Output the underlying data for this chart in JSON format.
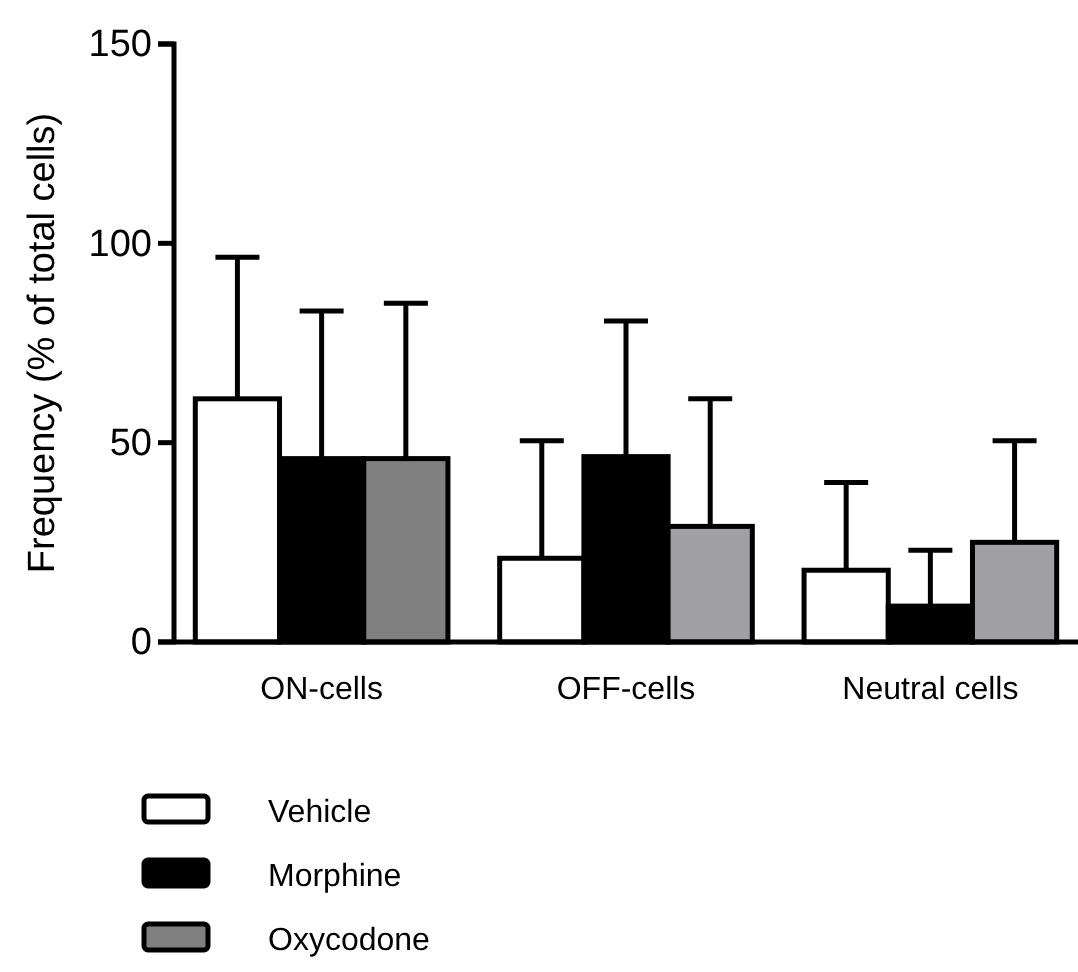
{
  "chart_data": {
    "type": "bar",
    "ylabel": "Frequency (% of total cells)",
    "categories": [
      "ON-cells",
      "OFF-cells",
      "Neutral cells"
    ],
    "ylim": [
      0,
      150
    ],
    "yticks": [
      0,
      50,
      100,
      150
    ],
    "legend": "bottom left",
    "grid": false,
    "series": [
      {
        "name": "Vehicle",
        "color": "#ffffff",
        "values": [
          61,
          21,
          18
        ],
        "errors": [
          35.5,
          29.5,
          22
        ]
      },
      {
        "name": "Morphine",
        "color": "#000000",
        "values": [
          46,
          46.5,
          9
        ],
        "errors": [
          37,
          34,
          14
        ]
      },
      {
        "name": "Oxycodone",
        "color": "#808080",
        "colors": [
          "#808080",
          "#a09fa4",
          "#a09fa4"
        ],
        "values": [
          46,
          29,
          25
        ],
        "errors": [
          39,
          32,
          25.5
        ]
      }
    ]
  }
}
